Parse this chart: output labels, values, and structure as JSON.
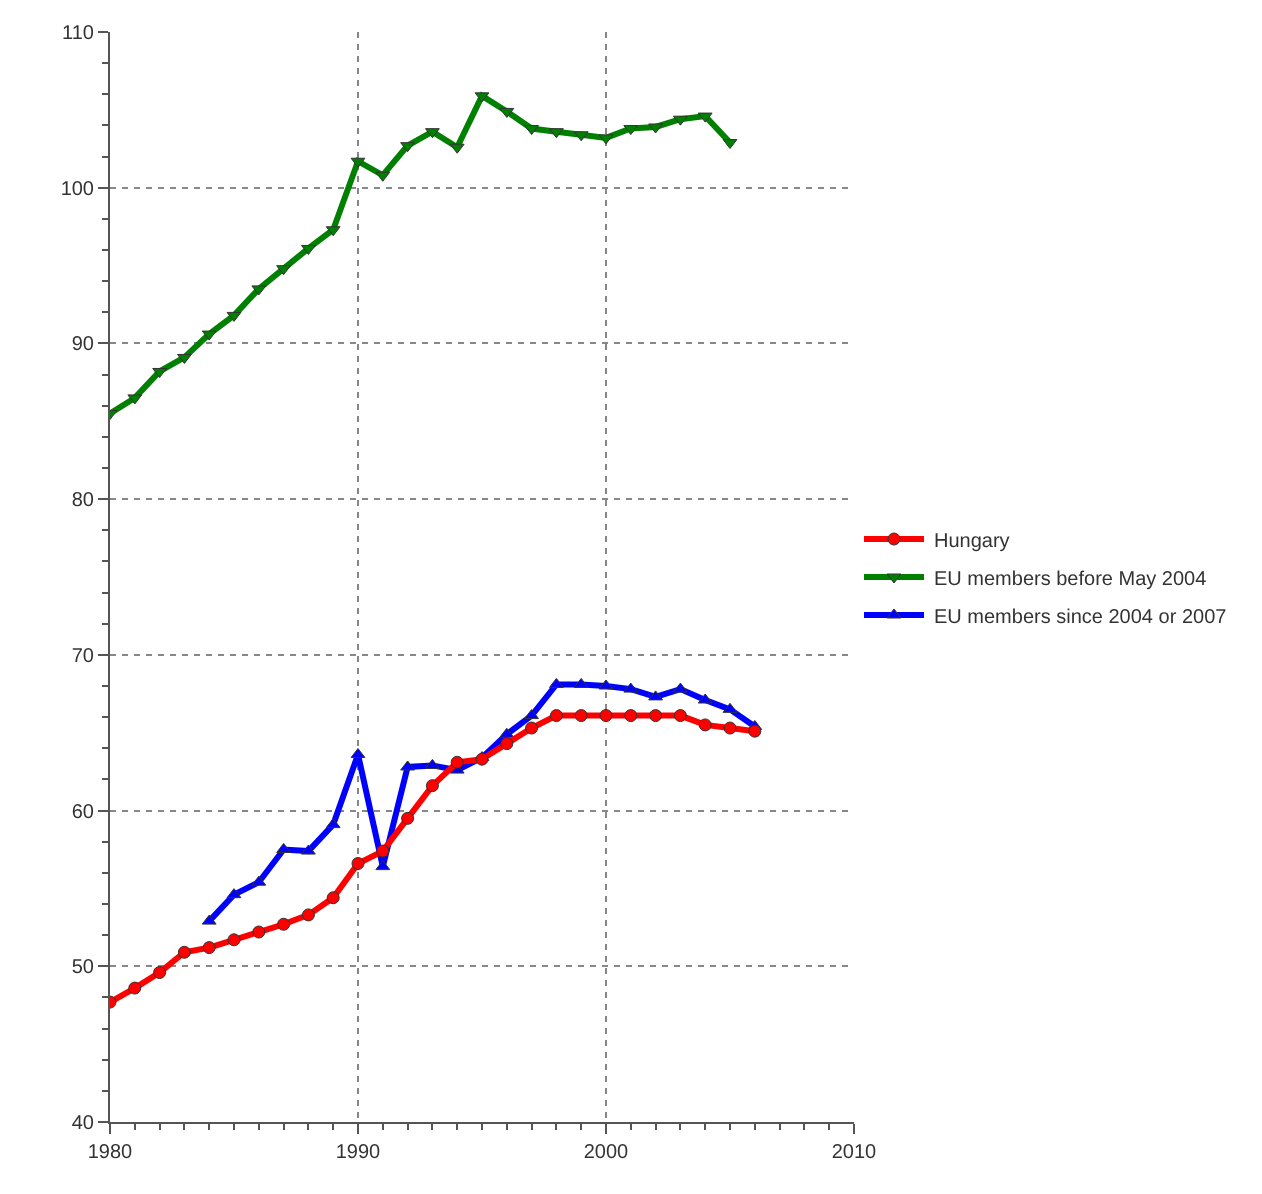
{
  "chart_data": {
    "type": "line",
    "legend": "right",
    "grid": true,
    "xlim": [
      1980,
      2010
    ],
    "xticks": [
      1980,
      1990,
      2000,
      2010
    ],
    "ylim": [
      40,
      110
    ],
    "yticks": [
      40,
      50,
      60,
      70,
      80,
      90,
      100,
      110
    ],
    "series": [
      {
        "name": "Hungary",
        "color": "#ff0000",
        "marker": "circle",
        "x": [
          1980,
          1981,
          1982,
          1983,
          1984,
          1985,
          1986,
          1987,
          1988,
          1989,
          1990,
          1991,
          1992,
          1993,
          1994,
          1995,
          1996,
          1997,
          1998,
          1999,
          2000,
          2001,
          2002,
          2003,
          2004,
          2005,
          2006
        ],
        "values": [
          47.7,
          48.6,
          49.6,
          50.9,
          51.2,
          51.7,
          52.2,
          52.7,
          53.3,
          54.4,
          56.6,
          57.4,
          59.5,
          61.6,
          63.1,
          63.3,
          64.3,
          65.3,
          66.1,
          66.1,
          66.1,
          66.1,
          66.1,
          66.1,
          65.5,
          65.3,
          65.1
        ]
      },
      {
        "name": "EU members before May 2004",
        "color": "#008000",
        "marker": "triangle-down",
        "x": [
          1980,
          1981,
          1982,
          1983,
          1984,
          1985,
          1986,
          1987,
          1988,
          1989,
          1990,
          1991,
          1992,
          1993,
          1994,
          1995,
          1996,
          1997,
          1998,
          1999,
          2000,
          2001,
          2002,
          2003,
          2004,
          2005
        ],
        "values": [
          85.5,
          86.5,
          88.2,
          89.1,
          90.6,
          91.8,
          93.5,
          94.8,
          96.1,
          97.3,
          101.7,
          100.8,
          102.7,
          103.6,
          102.6,
          105.9,
          104.9,
          103.8,
          103.6,
          103.4,
          103.2,
          103.8,
          103.9,
          104.4,
          104.6,
          102.9
        ]
      },
      {
        "name": "EU members since 2004 or 2007",
        "color": "#0000ff",
        "marker": "triangle",
        "x": [
          1984,
          1985,
          1986,
          1987,
          1988,
          1989,
          1990,
          1991,
          1992,
          1993,
          1994,
          1995,
          1996,
          1997,
          1998,
          1999,
          2000,
          2001,
          2002,
          2003,
          2004,
          2005,
          2006
        ],
        "values": [
          52.9,
          54.6,
          55.4,
          57.5,
          57.4,
          59.1,
          63.6,
          56.4,
          62.8,
          62.9,
          62.6,
          63.4,
          64.9,
          66.1,
          68.1,
          68.1,
          68.0,
          67.8,
          67.3,
          67.8,
          67.1,
          66.5,
          65.4
        ]
      }
    ]
  }
}
